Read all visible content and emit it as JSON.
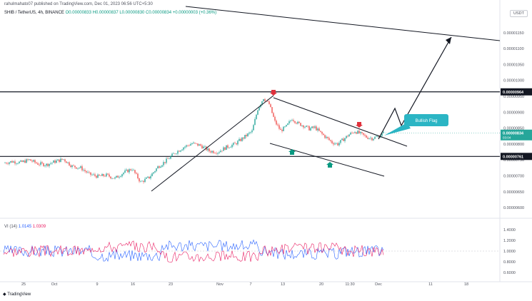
{
  "header": {
    "publisher_line": "rahulmahato07 published on TradingView.com, Dec 01, 2023 06:56 UTC+5:30",
    "symbol": "SHIB / TetherUS, 4h, BINANCE",
    "ohlc": "O0.00000833 H0.00000837 L0.00000830 C0.00000834",
    "change": "+0.00000003 (+0.36%)",
    "currency": "USDT",
    "logo_text": "TradingView"
  },
  "indicator": {
    "name": "VI (14)",
    "vi_plus": "1.0145",
    "vi_minus": "1.0309"
  },
  "colors": {
    "up": "#26a69a",
    "down": "#ef5350",
    "vi_plus": "#2962ff",
    "vi_minus": "#e91e63",
    "arrow_red": "#e0313c",
    "arrow_green": "#089981",
    "callout": "#2bb5c4"
  },
  "chart_data": {
    "type": "candlestick",
    "price_axis": {
      "ticks": [
        "0.00001150",
        "0.00001100",
        "0.00001050",
        "0.00001000",
        "0.00000950",
        "0.00000900",
        "0.00000850",
        "0.00000800",
        "0.00000750",
        "0.00000700",
        "0.00000650",
        "0.00000600"
      ],
      "range": [
        5.8e-06,
        1.19e-05
      ]
    },
    "time_axis": {
      "ticks": [
        "25",
        "Oct",
        "9",
        "16",
        "23",
        "Nov",
        "7",
        "13",
        "20",
        "11:30",
        "Dec",
        "11",
        "18"
      ]
    },
    "horizontal_levels": [
      {
        "label": "0.00000964",
        "value": 9.64e-06
      },
      {
        "label": "0.00000761",
        "value": 7.61e-06
      }
    ],
    "last_price": {
      "label": "0.00000834",
      "countdown": "03:04"
    },
    "annotation": "Bullish Flag",
    "price_path": [
      [
        0,
        7.4e-06
      ],
      [
        6,
        7.45e-06
      ],
      [
        12,
        7.42e-06
      ],
      [
        18,
        7.5e-06
      ],
      [
        24,
        7.38e-06
      ],
      [
        30,
        7.35e-06
      ],
      [
        36,
        7.45e-06
      ],
      [
        42,
        7.52e-06
      ],
      [
        48,
        7.3e-06
      ],
      [
        54,
        7.25e-06
      ],
      [
        60,
        7.05e-06
      ],
      [
        66,
        6.98e-06
      ],
      [
        72,
        7.02e-06
      ],
      [
        78,
        6.92e-06
      ],
      [
        84,
        7.1e-06
      ],
      [
        90,
        7.22e-06
      ],
      [
        96,
        6.8e-06
      ],
      [
        102,
        6.95e-06
      ],
      [
        108,
        7.28e-06
      ],
      [
        114,
        7.48e-06
      ],
      [
        120,
        7.72e-06
      ],
      [
        126,
        7.9e-06
      ],
      [
        132,
        8.02e-06
      ],
      [
        138,
        7.95e-06
      ],
      [
        144,
        7.78e-06
      ],
      [
        150,
        7.75e-06
      ],
      [
        156,
        7.9e-06
      ],
      [
        162,
        8e-06
      ],
      [
        168,
        8.2e-06
      ],
      [
        174,
        8.4e-06
      ],
      [
        178,
        9.1e-06
      ],
      [
        182,
        9.45e-06
      ],
      [
        186,
        9.25e-06
      ],
      [
        190,
        8.7e-06
      ],
      [
        194,
        8.42e-06
      ],
      [
        198,
        8.55e-06
      ],
      [
        202,
        8.8e-06
      ],
      [
        206,
        8.65e-06
      ],
      [
        210,
        8.58e-06
      ],
      [
        214,
        8.48e-06
      ],
      [
        218,
        8.52e-06
      ],
      [
        222,
        8.35e-06
      ],
      [
        226,
        8.2e-06
      ],
      [
        230,
        8.05e-06
      ],
      [
        234,
        8e-06
      ],
      [
        238,
        8.15e-06
      ],
      [
        242,
        8.3e-06
      ],
      [
        246,
        8.4e-06
      ],
      [
        250,
        8.32e-06
      ],
      [
        254,
        8.22e-06
      ],
      [
        258,
        8.18e-06
      ],
      [
        262,
        8.23e-06
      ],
      [
        266,
        8.34e-06
      ]
    ]
  }
}
